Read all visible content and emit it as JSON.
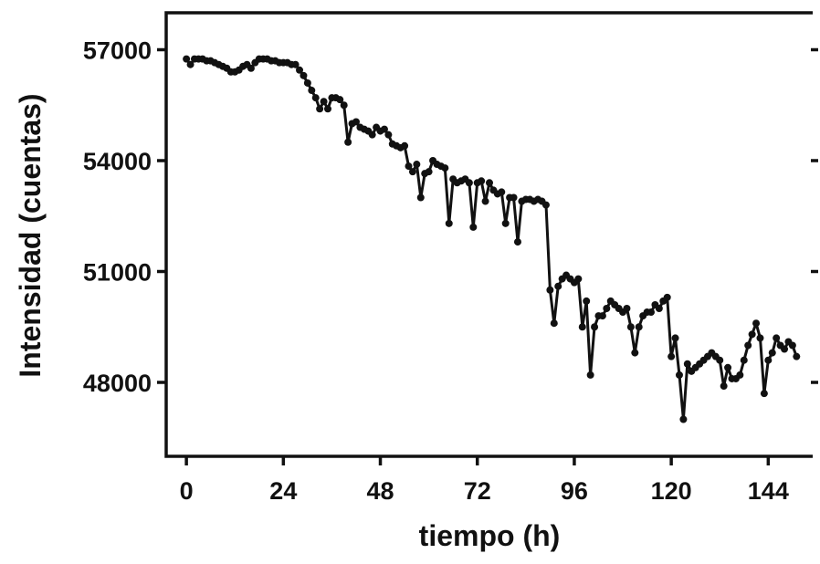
{
  "chart_data": {
    "type": "line",
    "xlabel": "tiempo (h)",
    "ylabel": "Intensidad (cuentas)",
    "color": "#111111",
    "markers": true,
    "xlim": [
      -5,
      155
    ],
    "xticks": [
      0,
      24,
      48,
      72,
      96,
      120,
      144
    ],
    "ylim": [
      46000,
      58000
    ],
    "yticks": [
      48000,
      51000,
      54000,
      57000
    ],
    "right_ticks": true,
    "x": [
      0,
      1,
      2,
      3,
      4,
      5,
      6,
      7,
      8,
      9,
      10,
      11,
      12,
      13,
      14,
      15,
      16,
      17,
      18,
      19,
      20,
      21,
      22,
      23,
      24,
      25,
      26,
      27,
      28,
      29,
      30,
      31,
      32,
      33,
      34,
      35,
      36,
      37,
      38,
      39,
      40,
      41,
      42,
      43,
      44,
      45,
      46,
      47,
      48,
      49,
      50,
      51,
      52,
      53,
      54,
      55,
      56,
      57,
      58,
      59,
      60,
      61,
      62,
      63,
      64,
      65,
      66,
      67,
      68,
      69,
      70,
      71,
      72,
      73,
      74,
      75,
      76,
      77,
      78,
      79,
      80,
      81,
      82,
      83,
      84,
      85,
      86,
      87,
      88,
      89,
      90,
      91,
      92,
      93,
      94,
      95,
      96,
      97,
      98,
      99,
      100,
      101,
      102,
      103,
      104,
      105,
      106,
      107,
      108,
      109,
      110,
      111,
      112,
      113,
      114,
      115,
      116,
      117,
      118,
      119,
      120,
      121,
      122,
      123,
      124,
      125,
      126,
      127,
      128,
      129,
      130,
      131,
      132,
      133,
      134,
      135,
      136,
      137,
      138,
      139,
      140,
      141,
      142,
      143,
      144,
      145,
      146,
      147,
      148,
      149,
      150,
      151
    ],
    "values": [
      56750,
      56600,
      56750,
      56750,
      56750,
      56700,
      56700,
      56650,
      56600,
      56550,
      56500,
      56400,
      56400,
      56450,
      56550,
      56600,
      56500,
      56650,
      56750,
      56750,
      56750,
      56700,
      56700,
      56650,
      56650,
      56650,
      56600,
      56600,
      56450,
      56300,
      56100,
      55900,
      55700,
      55400,
      55600,
      55400,
      55700,
      55700,
      55650,
      55500,
      54500,
      55000,
      55050,
      54900,
      54850,
      54800,
      54700,
      54900,
      54800,
      54850,
      54700,
      54450,
      54400,
      54350,
      54400,
      53850,
      53700,
      53900,
      53000,
      53650,
      53700,
      54000,
      53900,
      53850,
      53800,
      52300,
      53500,
      53400,
      53450,
      53500,
      53400,
      52200,
      53400,
      53450,
      52900,
      53400,
      53200,
      53100,
      53150,
      52300,
      53000,
      53000,
      51800,
      52900,
      52950,
      52950,
      52900,
      52950,
      52900,
      52800,
      50500,
      49600,
      50600,
      50800,
      50900,
      50800,
      50700,
      50800,
      49500,
      50200,
      48200,
      49500,
      49800,
      49800,
      50000,
      50200,
      50100,
      50000,
      49900,
      50000,
      49500,
      48800,
      49500,
      49800,
      49900,
      49900,
      50100,
      50000,
      50200,
      50300,
      48700,
      49200,
      48200,
      47000,
      48500,
      48300,
      48400,
      48500,
      48600,
      48700,
      48800,
      48700,
      48600,
      47900,
      48400,
      48100,
      48100,
      48200,
      48600,
      49000,
      49300,
      49600,
      49200,
      47700,
      48600,
      48800,
      49200,
      49000,
      48900,
      49100,
      49000,
      48700
    ]
  }
}
